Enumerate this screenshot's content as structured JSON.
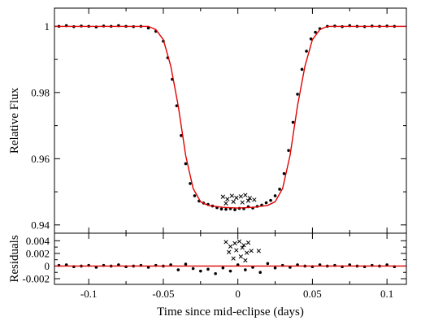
{
  "colors": {
    "model": "#e00000",
    "points": "#000000",
    "outliers": "#000000",
    "axes": "#000000"
  },
  "chart_data": [
    {
      "type": "scatter",
      "title": "",
      "xlabel": "",
      "ylabel": "Relative Flux",
      "xlim": [
        -0.123,
        0.113
      ],
      "ylim": [
        0.9375,
        1.0055
      ],
      "yticks": [
        0.94,
        0.96,
        0.98,
        1
      ],
      "ytick_labels": [
        "0.94",
        "0.96",
        "0.98",
        "1"
      ],
      "grid": false,
      "series": [
        {
          "kind": "points",
          "x": [
            -0.12,
            -0.115,
            -0.11,
            -0.105,
            -0.1,
            -0.095,
            -0.09,
            -0.085,
            -0.08,
            -0.075,
            -0.07,
            -0.065,
            -0.06,
            -0.055,
            -0.05,
            -0.047,
            -0.044,
            -0.041,
            -0.038,
            -0.035,
            -0.032,
            -0.029,
            -0.026,
            -0.023,
            -0.02,
            -0.017,
            -0.014,
            -0.011,
            -0.008,
            -0.005,
            -0.002,
            0.001,
            0.004,
            0.007,
            0.01,
            0.013,
            0.016,
            0.019,
            0.022,
            0.025,
            0.028,
            0.031,
            0.034,
            0.037,
            0.04,
            0.043,
            0.046,
            0.049,
            0.052,
            0.055,
            0.06,
            0.065,
            0.07,
            0.075,
            0.08,
            0.085,
            0.09,
            0.095,
            0.1,
            0.105
          ],
          "y": [
            1.0,
            1.0002,
            0.9999,
            1.0001,
            1.0,
            0.9998,
            1.0001,
            1.0,
            1.0002,
            1.0,
            0.9999,
            1.0,
            0.9995,
            0.9985,
            0.9955,
            0.9905,
            0.984,
            0.976,
            0.967,
            0.9585,
            0.9525,
            0.9488,
            0.9472,
            0.9466,
            0.9462,
            0.9457,
            0.9452,
            0.9448,
            0.9447,
            0.9449,
            0.9446,
            0.945,
            0.9449,
            0.9455,
            0.9451,
            0.9456,
            0.946,
            0.9467,
            0.9474,
            0.9488,
            0.9508,
            0.9555,
            0.9625,
            0.971,
            0.9795,
            0.987,
            0.9925,
            0.9962,
            0.9982,
            0.9993,
            1.0,
            1.0001,
            0.9999,
            1.0002,
            1.0,
            0.9999,
            1.0001,
            1.0,
            1.0001,
            1.0
          ]
        },
        {
          "kind": "outliers",
          "x": [
            -0.01,
            -0.007,
            -0.004,
            -0.001,
            0.002,
            0.005,
            0.008,
            0.011,
            -0.008,
            -0.003,
            0.003,
            0.007
          ],
          "y": [
            0.9485,
            0.9478,
            0.9488,
            0.9482,
            0.9486,
            0.949,
            0.9481,
            0.9476,
            0.9465,
            0.947,
            0.9468,
            0.9473
          ]
        },
        {
          "kind": "model",
          "x": [
            -0.123,
            -0.06,
            -0.055,
            -0.05,
            -0.045,
            -0.04,
            -0.035,
            -0.03,
            -0.025,
            -0.02,
            -0.01,
            0.0,
            0.01,
            0.02,
            0.025,
            0.03,
            0.035,
            0.04,
            0.045,
            0.05,
            0.055,
            0.06,
            0.113
          ],
          "y": [
            1.0,
            1.0,
            0.999,
            0.996,
            0.988,
            0.976,
            0.961,
            0.951,
            0.947,
            0.9459,
            0.9453,
            0.9451,
            0.9453,
            0.9459,
            0.947,
            0.951,
            0.961,
            0.976,
            0.988,
            0.996,
            0.999,
            1.0,
            1.0
          ]
        }
      ]
    },
    {
      "type": "scatter",
      "title": "",
      "xlabel": "Time since mid-eclipse (days)",
      "ylabel": "Residuals",
      "xlim": [
        -0.123,
        0.113
      ],
      "ylim": [
        -0.0029,
        0.0052
      ],
      "xticks": [
        -0.1,
        -0.05,
        0,
        0.05,
        0.1
      ],
      "xtick_labels": [
        "-0.1",
        "-0.05",
        "0",
        "0.05",
        "0.1"
      ],
      "yticks": [
        -0.002,
        0,
        0.002,
        0.004
      ],
      "ytick_labels": [
        "-0.002",
        "0",
        "0.002",
        "0.004"
      ],
      "grid": false,
      "series": [
        {
          "kind": "points",
          "x": [
            -0.12,
            -0.115,
            -0.11,
            -0.105,
            -0.1,
            -0.095,
            -0.09,
            -0.085,
            -0.08,
            -0.075,
            -0.07,
            -0.065,
            -0.06,
            -0.055,
            -0.05,
            -0.045,
            -0.04,
            -0.035,
            -0.03,
            -0.025,
            -0.02,
            -0.015,
            -0.01,
            -0.005,
            0.0,
            0.005,
            0.01,
            0.015,
            0.02,
            0.025,
            0.03,
            0.035,
            0.04,
            0.045,
            0.05,
            0.055,
            0.06,
            0.065,
            0.07,
            0.075,
            0.08,
            0.085,
            0.09,
            0.095,
            0.1,
            0.105
          ],
          "y": [
            0.0001,
            0.0002,
            -0.0001,
            0.0,
            0.0001,
            -0.0002,
            0.0001,
            0.0,
            0.0002,
            -0.0001,
            0.0,
            0.0001,
            -0.0002,
            0.0001,
            0.0,
            0.0002,
            -0.0006,
            0.0003,
            -0.0004,
            -0.0008,
            -0.0005,
            -0.0012,
            -0.0003,
            -0.0008,
            0.0002,
            -0.0006,
            -0.0002,
            -0.001,
            0.0004,
            -0.0003,
            0.0001,
            -0.0002,
            0.0002,
            0.0,
            -0.0001,
            0.0002,
            0.0,
            0.0001,
            -0.0001,
            0.0002,
            0.0,
            -0.0001,
            0.0001,
            0.0,
            0.0002,
            -0.0001
          ]
        },
        {
          "kind": "outliers",
          "x": [
            -0.008,
            -0.005,
            -0.002,
            0.001,
            0.004,
            0.007,
            -0.006,
            -0.001,
            0.003,
            0.006,
            0.009,
            -0.003,
            0.002,
            0.005,
            0.014
          ],
          "y": [
            0.0038,
            0.0031,
            0.0036,
            0.0039,
            0.0033,
            0.0037,
            0.0022,
            0.0025,
            0.0029,
            0.0021,
            0.0024,
            0.0012,
            0.0015,
            0.0009,
            0.0024
          ]
        },
        {
          "kind": "model",
          "x": [
            -0.123,
            0.113
          ],
          "y": [
            0,
            0
          ]
        }
      ]
    }
  ]
}
